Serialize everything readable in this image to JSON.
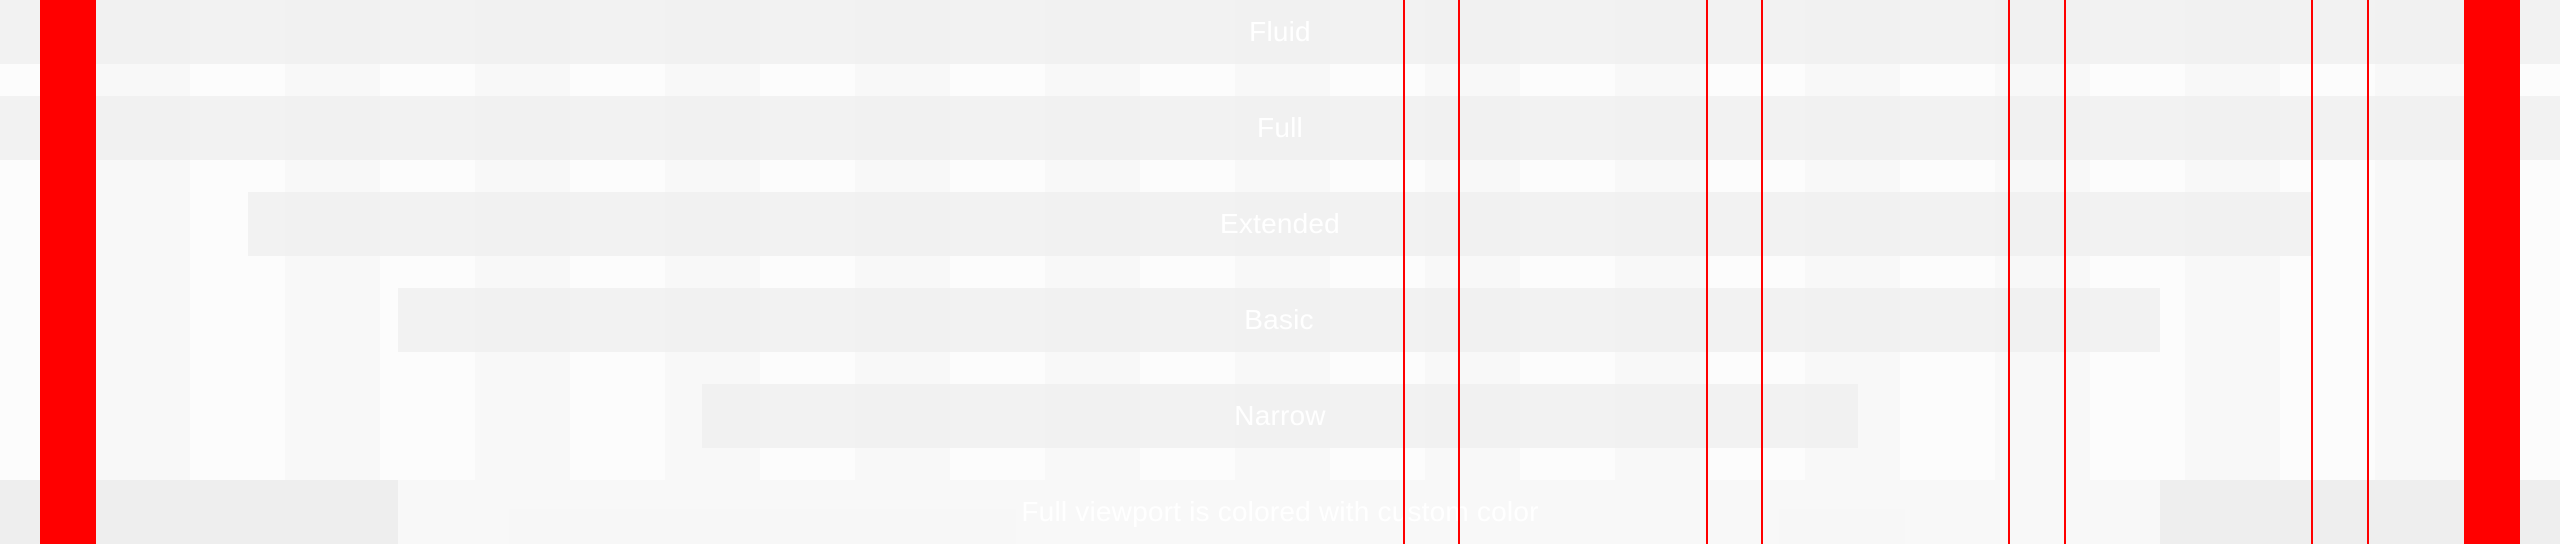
{
  "rows": [
    {
      "label": "Fluid"
    },
    {
      "label": "Full"
    },
    {
      "label": "Extended"
    },
    {
      "label": "Basic"
    },
    {
      "label": "Narrow"
    },
    {
      "label": "Full viewport is colored with custom color"
    }
  ],
  "colors": {
    "accent": "#ff0000",
    "band": "#eeeeee",
    "background": "#fcfcfc",
    "text": "#ffffff"
  }
}
